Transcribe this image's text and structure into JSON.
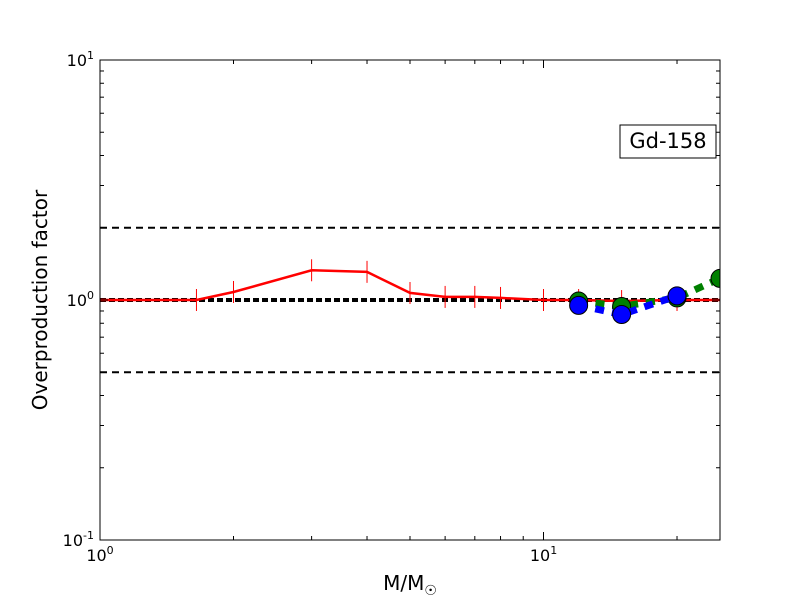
{
  "chart_data": {
    "type": "line",
    "xlabel": "M/M",
    "xlabel_sub": "☉",
    "ylabel": "Overproduction factor",
    "xscale": "log",
    "yscale": "log",
    "xlim": [
      1,
      25
    ],
    "ylim": [
      0.1,
      10
    ],
    "x_ticks": [
      {
        "base": "10",
        "exp": "0",
        "value": 1
      },
      {
        "base": "10",
        "exp": "1",
        "value": 10
      }
    ],
    "y_ticks": [
      {
        "base": "10",
        "exp": "-1",
        "value": 0.1
      },
      {
        "base": "10",
        "exp": "0",
        "value": 1
      },
      {
        "base": "10",
        "exp": "1",
        "value": 10
      }
    ],
    "annotation": "Gd-158",
    "reference_lines": [
      {
        "y": 2.0,
        "style": "dashed",
        "color": "#000000"
      },
      {
        "y": 1.0,
        "style": "dotted-thick",
        "color": "#000000"
      },
      {
        "y": 0.5,
        "style": "dashed",
        "color": "#000000"
      }
    ],
    "series": [
      {
        "color": "#ff0000",
        "style": "solid-with-plus-markers",
        "x": [
          1.0,
          1.65,
          2.0,
          3.0,
          4.0,
          5.0,
          6.0,
          7.0,
          8.0,
          10.0,
          12.0,
          15.0,
          20.0,
          25.0
        ],
        "y": [
          1.0,
          1.0,
          1.08,
          1.33,
          1.31,
          1.07,
          1.03,
          1.03,
          1.02,
          1.0,
          1.0,
          0.99,
          1.0,
          1.0
        ]
      },
      {
        "color": "#008000",
        "style": "dotted-with-circle-markers",
        "x": [
          12.0,
          15.0,
          20.0,
          25.0
        ],
        "y": [
          0.99,
          0.94,
          1.02,
          1.23
        ]
      },
      {
        "color": "#0000ff",
        "style": "dotted-with-circle-markers",
        "x": [
          12.0,
          15.0,
          20.0
        ],
        "y": [
          0.95,
          0.87,
          1.04
        ]
      }
    ]
  }
}
